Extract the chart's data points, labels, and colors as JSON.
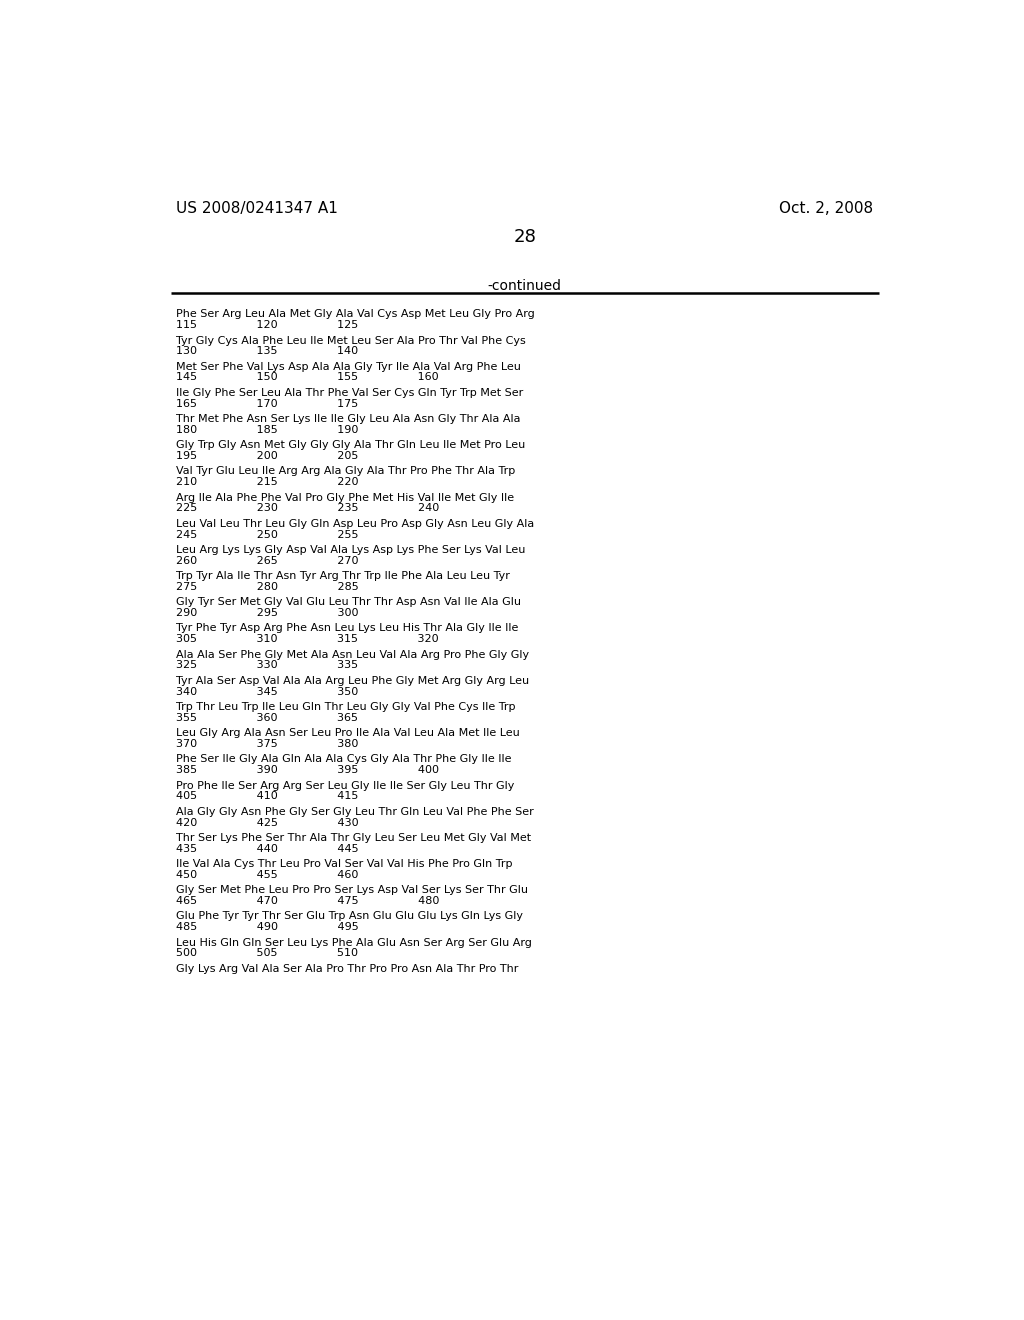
{
  "header_left": "US 2008/0241347 A1",
  "header_right": "Oct. 2, 2008",
  "page_number": "28",
  "continued_label": "-continued",
  "background_color": "#ffffff",
  "text_color": "#000000",
  "sequence_data": [
    [
      "Phe Ser Arg Leu Ala Met Gly Ala Val Cys Asp Met Leu Gly Pro Arg",
      "115                 120                 125"
    ],
    [
      "Tyr Gly Cys Ala Phe Leu Ile Met Leu Ser Ala Pro Thr Val Phe Cys",
      "130                 135                 140"
    ],
    [
      "Met Ser Phe Val Lys Asp Ala Ala Gly Tyr Ile Ala Val Arg Phe Leu",
      "145                 150                 155                 160"
    ],
    [
      "Ile Gly Phe Ser Leu Ala Thr Phe Val Ser Cys Gln Tyr Trp Met Ser",
      "165                 170                 175"
    ],
    [
      "Thr Met Phe Asn Ser Lys Ile Ile Gly Leu Ala Asn Gly Thr Ala Ala",
      "180                 185                 190"
    ],
    [
      "Gly Trp Gly Asn Met Gly Gly Gly Ala Thr Gln Leu Ile Met Pro Leu",
      "195                 200                 205"
    ],
    [
      "Val Tyr Glu Leu Ile Arg Arg Ala Gly Ala Thr Pro Phe Thr Ala Trp",
      "210                 215                 220"
    ],
    [
      "Arg Ile Ala Phe Phe Val Pro Gly Phe Met His Val Ile Met Gly Ile",
      "225                 230                 235                 240"
    ],
    [
      "Leu Val Leu Thr Leu Gly Gln Asp Leu Pro Asp Gly Asn Leu Gly Ala",
      "245                 250                 255"
    ],
    [
      "Leu Arg Lys Lys Gly Asp Val Ala Lys Asp Lys Phe Ser Lys Val Leu",
      "260                 265                 270"
    ],
    [
      "Trp Tyr Ala Ile Thr Asn Tyr Arg Thr Trp Ile Phe Ala Leu Leu Tyr",
      "275                 280                 285"
    ],
    [
      "Gly Tyr Ser Met Gly Val Glu Leu Thr Thr Asp Asn Val Ile Ala Glu",
      "290                 295                 300"
    ],
    [
      "Tyr Phe Tyr Asp Arg Phe Asn Leu Lys Leu His Thr Ala Gly Ile Ile",
      "305                 310                 315                 320"
    ],
    [
      "Ala Ala Ser Phe Gly Met Ala Asn Leu Val Ala Arg Pro Phe Gly Gly",
      "325                 330                 335"
    ],
    [
      "Tyr Ala Ser Asp Val Ala Ala Arg Leu Phe Gly Met Arg Gly Arg Leu",
      "340                 345                 350"
    ],
    [
      "Trp Thr Leu Trp Ile Leu Gln Thr Leu Gly Gly Val Phe Cys Ile Trp",
      "355                 360                 365"
    ],
    [
      "Leu Gly Arg Ala Asn Ser Leu Pro Ile Ala Val Leu Ala Met Ile Leu",
      "370                 375                 380"
    ],
    [
      "Phe Ser Ile Gly Ala Gln Ala Ala Cys Gly Ala Thr Phe Gly Ile Ile",
      "385                 390                 395                 400"
    ],
    [
      "Pro Phe Ile Ser Arg Arg Ser Leu Gly Ile Ile Ser Gly Leu Thr Gly",
      "405                 410                 415"
    ],
    [
      "Ala Gly Gly Asn Phe Gly Ser Gly Leu Thr Gln Leu Val Phe Phe Ser",
      "420                 425                 430"
    ],
    [
      "Thr Ser Lys Phe Ser Thr Ala Thr Gly Leu Ser Leu Met Gly Val Met",
      "435                 440                 445"
    ],
    [
      "Ile Val Ala Cys Thr Leu Pro Val Ser Val Val His Phe Pro Gln Trp",
      "450                 455                 460"
    ],
    [
      "Gly Ser Met Phe Leu Pro Pro Ser Lys Asp Val Ser Lys Ser Thr Glu",
      "465                 470                 475                 480"
    ],
    [
      "Glu Phe Tyr Tyr Thr Ser Glu Trp Asn Glu Glu Glu Lys Gln Lys Gly",
      "485                 490                 495"
    ],
    [
      "Leu His Gln Gln Ser Leu Lys Phe Ala Glu Asn Ser Arg Ser Glu Arg",
      "500                 505                 510"
    ],
    [
      "Gly Lys Arg Val Ala Ser Ala Pro Thr Pro Pro Asn Ala Thr Pro Thr",
      ""
    ]
  ]
}
